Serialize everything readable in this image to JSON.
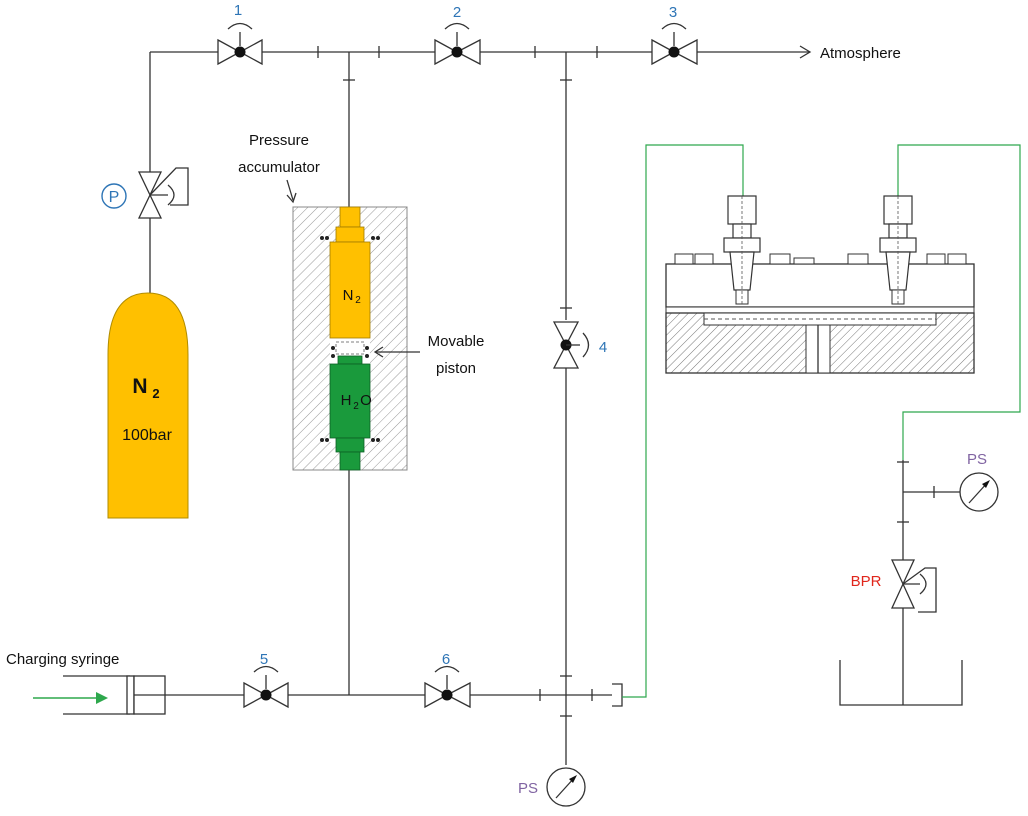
{
  "labels": {
    "atmosphere": "Atmosphere",
    "accumulator_line1": "Pressure",
    "accumulator_line2": "accumulator",
    "piston_line1": "Movable",
    "piston_line2": "piston",
    "syringe": "Charging syringe",
    "bpr": "BPR",
    "cylinder_gas_main": "N",
    "cylinder_gas_sub": "2",
    "cylinder_pressure": "100bar",
    "gas_chamber_main": "N",
    "gas_chamber_sub": "2",
    "water_main": "H",
    "water_sub": "2",
    "water_end": "O",
    "regulator": "P",
    "ps_left": "PS",
    "ps_right": "PS"
  },
  "valves": [
    "1",
    "2",
    "3",
    "4",
    "5",
    "6"
  ],
  "colors": {
    "n2": "#ffc000",
    "water": "#1a9a3c",
    "green_line": "#2ea84d",
    "valve_number": "#2e75b6",
    "ps": "#8064a2",
    "bpr": "#e0261c",
    "line": "#333333"
  }
}
